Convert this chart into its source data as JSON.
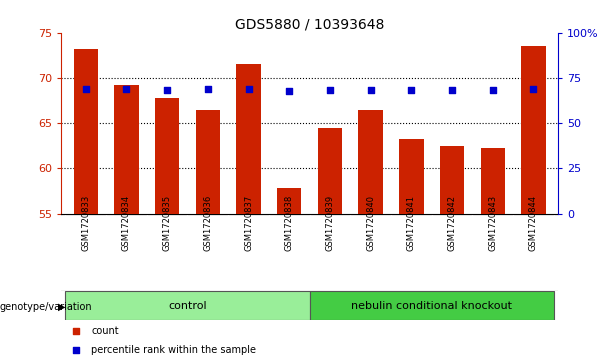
{
  "title": "GDS5880 / 10393648",
  "samples": [
    "GSM1720833",
    "GSM1720834",
    "GSM1720835",
    "GSM1720836",
    "GSM1720837",
    "GSM1720838",
    "GSM1720839",
    "GSM1720840",
    "GSM1720841",
    "GSM1720842",
    "GSM1720843",
    "GSM1720844"
  ],
  "counts": [
    73.2,
    69.2,
    67.8,
    66.4,
    71.5,
    57.8,
    64.5,
    66.5,
    63.3,
    62.5,
    62.2,
    73.5
  ],
  "percentile_ranks": [
    69.0,
    68.8,
    68.5,
    68.8,
    69.0,
    67.5,
    68.5,
    68.5,
    68.5,
    68.3,
    68.3,
    68.8
  ],
  "ylim_left": [
    55,
    75
  ],
  "ylim_right": [
    0,
    100
  ],
  "yticks_left": [
    55,
    60,
    65,
    70,
    75
  ],
  "yticks_right": [
    0,
    25,
    50,
    75,
    100
  ],
  "ytick_labels_right": [
    "0",
    "25",
    "50",
    "75",
    "100%"
  ],
  "bar_color": "#cc2200",
  "dot_color": "#0000cc",
  "bar_width": 0.6,
  "sample_area_color": "#cccccc",
  "control_label": "control",
  "knockout_label": "nebulin conditional knockout",
  "control_color": "#99ee99",
  "knockout_color": "#44cc44",
  "genotype_label": "genotype/variation",
  "legend_count_label": "count",
  "legend_percentile_label": "percentile rank within the sample",
  "title_fontsize": 10,
  "axis_fontsize": 8,
  "n_control": 6,
  "n_knockout": 6
}
